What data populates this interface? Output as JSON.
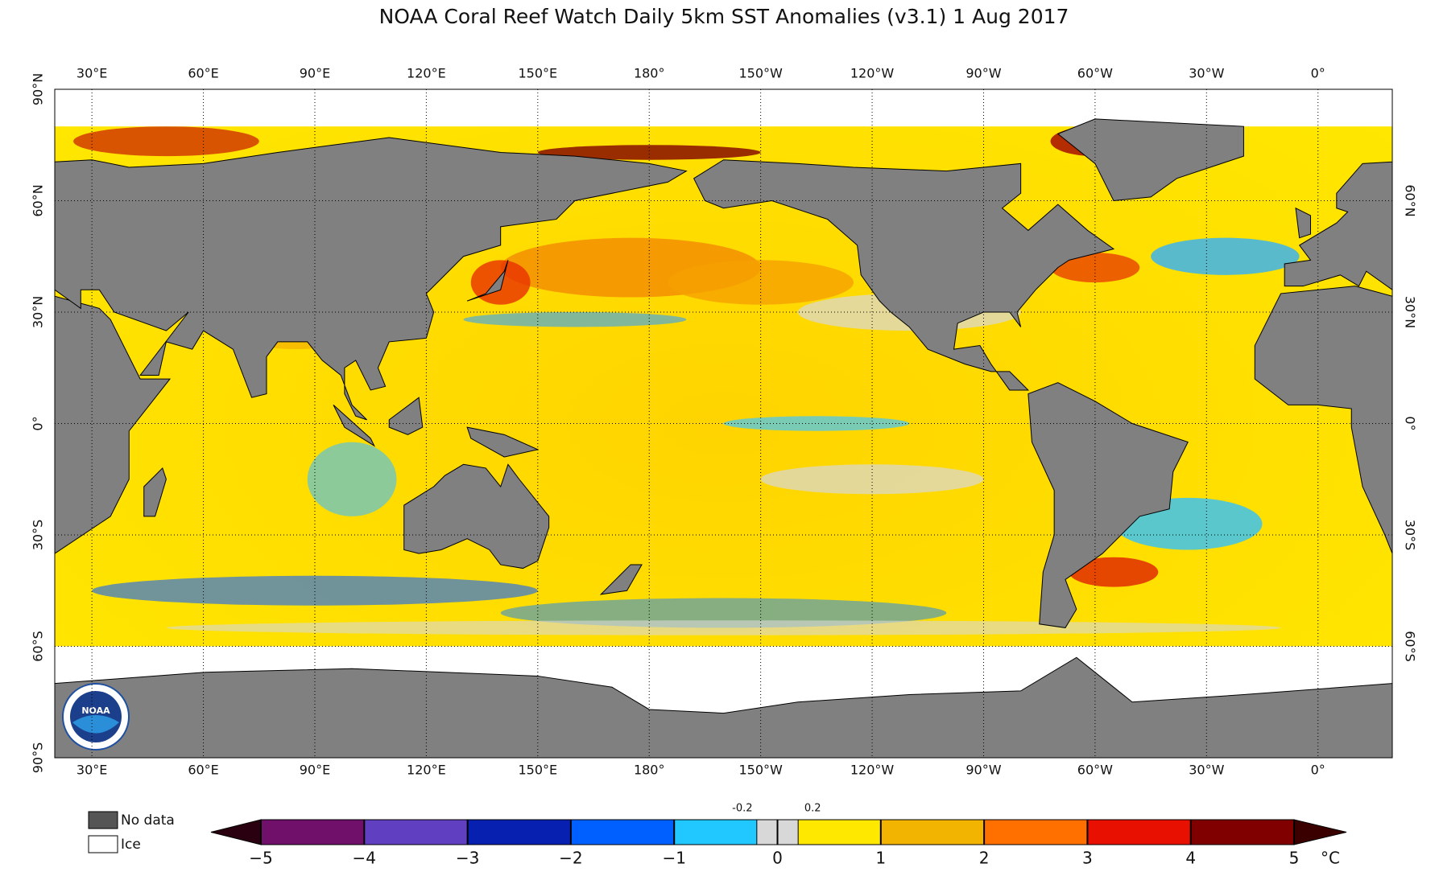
{
  "title": "NOAA Coral Reef Watch Daily 5km SST Anomalies  (v3.1)   1 Aug 2017",
  "map": {
    "lon_ticks": [
      {
        "value": 30,
        "label": "30°E"
      },
      {
        "value": 60,
        "label": "60°E"
      },
      {
        "value": 90,
        "label": "90°E"
      },
      {
        "value": 120,
        "label": "120°E"
      },
      {
        "value": 150,
        "label": "150°E"
      },
      {
        "value": 180,
        "label": "180°"
      },
      {
        "value": 210,
        "label": "150°W"
      },
      {
        "value": 240,
        "label": "120°W"
      },
      {
        "value": 270,
        "label": "90°W"
      },
      {
        "value": 300,
        "label": "60°W"
      },
      {
        "value": 330,
        "label": "30°W"
      },
      {
        "value": 360,
        "label": "0°"
      }
    ],
    "lat_ticks": [
      {
        "value": 90,
        "label": "90°N"
      },
      {
        "value": 60,
        "label": "60°N"
      },
      {
        "value": 30,
        "label": "30°N"
      },
      {
        "value": 0,
        "label": "0°"
      },
      {
        "value": -30,
        "label": "30°S"
      },
      {
        "value": -60,
        "label": "60°S"
      },
      {
        "value": -90,
        "label": "90°S"
      }
    ],
    "logo_text": "NOAA"
  },
  "legend": [
    {
      "label": "No data",
      "color": "#555555"
    },
    {
      "label": "Ice",
      "color": "#ffffff"
    }
  ],
  "colorbar": {
    "range": [
      -5,
      5
    ],
    "ticks": [
      {
        "value": -5,
        "label": "−5"
      },
      {
        "value": -4,
        "label": "−4"
      },
      {
        "value": -3,
        "label": "−3"
      },
      {
        "value": -2,
        "label": "−2"
      },
      {
        "value": -1,
        "label": "−1"
      },
      0,
      1,
      2,
      3,
      4,
      5
    ],
    "minor_ticks": [
      -0.2,
      0.2
    ],
    "unit": "°C",
    "segment_colors": [
      "#70106a",
      "#6040c0",
      "#0820b0",
      "#0060ff",
      "#20c8ff",
      "#ffe800",
      "#f2b400",
      "#ff7000",
      "#e81000",
      "#800000"
    ],
    "neutral_color": "#d8d8d8",
    "low_color": "#2a0010",
    "high_color": "#3a0000"
  }
}
